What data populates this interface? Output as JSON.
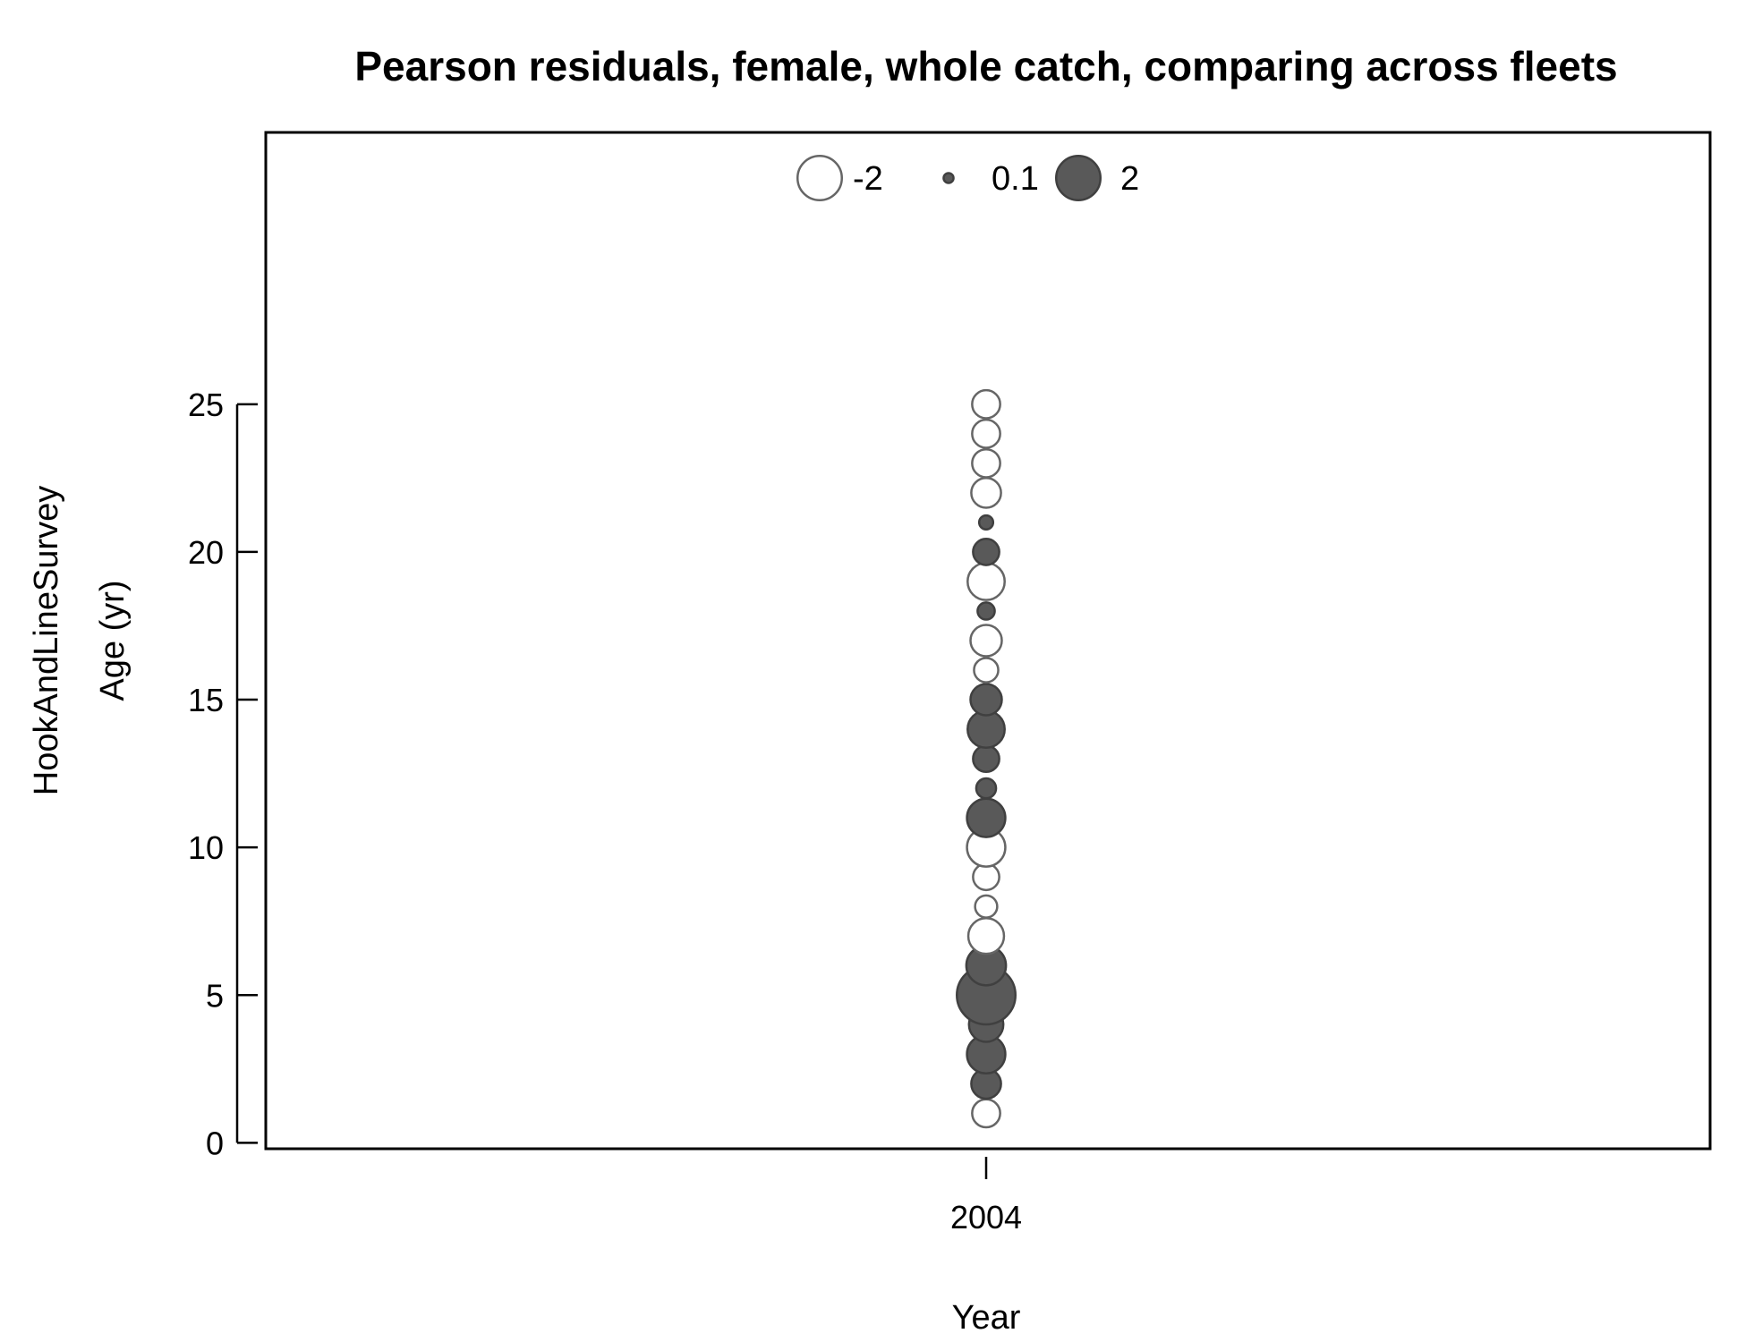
{
  "chart_data": {
    "type": "scatter",
    "subtype": "bubble",
    "title": "Pearson residuals, female, whole catch, comparing across fleets",
    "xlabel": "Year",
    "ylabel": "Age (yr)",
    "fleet_label": "HookAndLineSurvey",
    "x_ticks": [
      2004
    ],
    "y_ticks": [
      0,
      5,
      10,
      15,
      20,
      25
    ],
    "ylim": [
      -0.2,
      34.2
    ],
    "legend": {
      "placement": "top",
      "entries": [
        {
          "label": "-2",
          "value": -2
        },
        {
          "label": "0.1",
          "value": 0.1
        },
        {
          "label": "2",
          "value": 2
        }
      ]
    },
    "colors": {
      "positive_fill": "#595959",
      "positive_stroke": "#404040",
      "negative_fill": "#ffffff",
      "negative_stroke": "#666666"
    },
    "points": [
      {
        "year": 2004,
        "age": 1,
        "residual": -0.8
      },
      {
        "year": 2004,
        "age": 2,
        "residual": 0.9
      },
      {
        "year": 2004,
        "age": 3,
        "residual": 1.5
      },
      {
        "year": 2004,
        "age": 4,
        "residual": 1.2
      },
      {
        "year": 2004,
        "age": 5,
        "residual": 3.5
      },
      {
        "year": 2004,
        "age": 6,
        "residual": 1.6
      },
      {
        "year": 2004,
        "age": 7,
        "residual": -1.3
      },
      {
        "year": 2004,
        "age": 8,
        "residual": -0.5
      },
      {
        "year": 2004,
        "age": 9,
        "residual": -0.7
      },
      {
        "year": 2004,
        "age": 10,
        "residual": -1.5
      },
      {
        "year": 2004,
        "age": 11,
        "residual": 1.5
      },
      {
        "year": 2004,
        "age": 12,
        "residual": 0.4
      },
      {
        "year": 2004,
        "age": 13,
        "residual": 0.7
      },
      {
        "year": 2004,
        "age": 14,
        "residual": 1.4
      },
      {
        "year": 2004,
        "age": 15,
        "residual": 1.0
      },
      {
        "year": 2004,
        "age": 16,
        "residual": -0.6
      },
      {
        "year": 2004,
        "age": 17,
        "residual": -1.0
      },
      {
        "year": 2004,
        "age": 18,
        "residual": 0.3
      },
      {
        "year": 2004,
        "age": 19,
        "residual": -1.4
      },
      {
        "year": 2004,
        "age": 20,
        "residual": 0.7
      },
      {
        "year": 2004,
        "age": 21,
        "residual": 0.2
      },
      {
        "year": 2004,
        "age": 22,
        "residual": -0.9
      },
      {
        "year": 2004,
        "age": 23,
        "residual": -0.8
      },
      {
        "year": 2004,
        "age": 24,
        "residual": -0.8
      },
      {
        "year": 2004,
        "age": 25,
        "residual": -0.8
      }
    ]
  }
}
